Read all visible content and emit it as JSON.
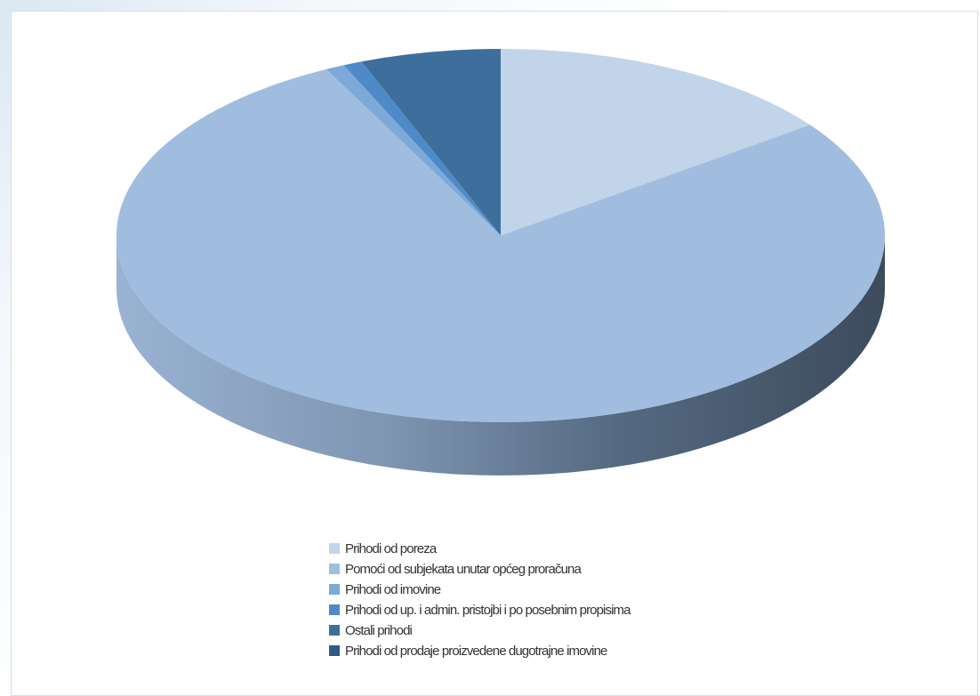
{
  "chart_data": {
    "type": "pie",
    "style": "3d",
    "title": "",
    "slices": [
      {
        "label": "Prihodi od poreza",
        "value": 14.9,
        "color": "#c2d4e9"
      },
      {
        "label": "Pomoći od subjekata unutar općeg proračuna",
        "value": 77.6,
        "color": "#a0bde0"
      },
      {
        "label": "Prihodi od imovine",
        "value": 0.8,
        "color": "#7ca9d8"
      },
      {
        "label": "Prihodi od up. i admin. pristojbi i po posebnim propisima",
        "value": 0.8,
        "color": "#4f8ac8"
      },
      {
        "label": "Ostali prihodi",
        "value": 5.9,
        "color": "#3e6f9c"
      },
      {
        "label": "Prihodi od prodaje proizvedene dugotrajne imovine",
        "value": 0.0,
        "color": "#2f5a88"
      }
    ],
    "legend_position": "bottom"
  }
}
